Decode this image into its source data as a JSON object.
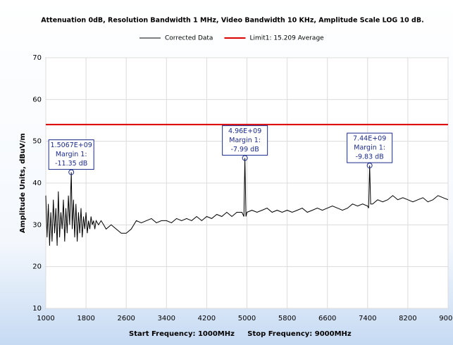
{
  "chart_data": {
    "type": "line",
    "title": "Attenuation 0dB, Resolution Bandwidth 1 MHz, Video Bandwidth 10 KHz, Amplitude Scale LOG 10 dB.",
    "ylabel": "Amplitude Units, dBuV/m",
    "footer": [
      "Start Frequency: 1000MHz",
      "Stop Frequency: 9000MHz"
    ],
    "xlim": [
      1000,
      9000
    ],
    "xticks": [
      1000,
      1800,
      2600,
      3400,
      4200,
      5000,
      5800,
      6600,
      7400,
      8200,
      9000
    ],
    "ylim": [
      10,
      70
    ],
    "yticks": [
      10,
      20,
      30,
      40,
      50,
      60,
      70
    ],
    "grid": true,
    "legend": "top",
    "series": [
      {
        "name": "Corrected Data",
        "color": "#000000",
        "x": [
          1000,
          1025,
          1050,
          1075,
          1100,
          1125,
          1150,
          1175,
          1200,
          1225,
          1250,
          1275,
          1300,
          1325,
          1350,
          1375,
          1400,
          1425,
          1450,
          1475,
          1507,
          1525,
          1550,
          1575,
          1600,
          1625,
          1650,
          1675,
          1700,
          1725,
          1750,
          1775,
          1800,
          1825,
          1850,
          1875,
          1900,
          1925,
          1950,
          1975,
          2000,
          2050,
          2100,
          2150,
          2200,
          2300,
          2400,
          2500,
          2600,
          2700,
          2800,
          2900,
          3000,
          3100,
          3200,
          3300,
          3400,
          3500,
          3600,
          3700,
          3800,
          3900,
          4000,
          4100,
          4200,
          4300,
          4400,
          4500,
          4600,
          4700,
          4800,
          4900,
          4940,
          4960,
          4980,
          5000,
          5100,
          5200,
          5300,
          5400,
          5500,
          5600,
          5700,
          5800,
          5900,
          6000,
          6100,
          6200,
          6300,
          6400,
          6500,
          6600,
          6700,
          6800,
          6900,
          7000,
          7100,
          7200,
          7300,
          7400,
          7420,
          7440,
          7460,
          7500,
          7600,
          7700,
          7800,
          7900,
          8000,
          8100,
          8200,
          8300,
          8400,
          8500,
          8600,
          8700,
          8800,
          8900,
          9000
        ],
        "values": [
          37,
          27,
          35,
          25,
          33,
          26,
          36,
          28,
          34,
          25,
          38,
          27,
          33,
          29,
          36,
          26,
          34,
          28,
          37,
          30,
          42.6,
          29,
          36,
          27,
          35,
          26,
          33,
          28,
          34,
          27,
          32,
          29,
          33,
          28,
          31,
          29,
          32,
          30,
          31,
          29,
          31,
          30,
          31,
          30,
          29,
          30,
          29,
          28,
          28,
          29,
          31,
          30.5,
          31,
          31.5,
          30.5,
          31,
          31,
          30.5,
          31.5,
          31,
          31.5,
          31,
          32,
          31,
          32,
          31.5,
          32.5,
          32,
          33,
          32,
          33,
          33,
          32,
          46,
          32,
          33,
          33.5,
          33,
          33.5,
          34,
          33,
          33.5,
          33,
          33.5,
          33,
          33.5,
          34,
          33,
          33.5,
          34,
          33.5,
          34,
          34.5,
          34,
          33.5,
          34,
          35,
          34.5,
          35,
          34.5,
          34,
          44.2,
          35,
          35,
          36,
          35.5,
          36,
          37,
          36,
          36.5,
          36,
          35.5,
          36,
          36.5,
          35.5,
          36,
          37,
          36.5,
          36
        ]
      },
      {
        "name": "Limit1: 15.209 Average",
        "color": "#dd0000",
        "x": [
          1000,
          9000
        ],
        "values": [
          54,
          54
        ]
      }
    ],
    "annotations": [
      {
        "x": 1507,
        "y": 42.6,
        "lines": [
          "1.5067E+09",
          "Margin 1:",
          "-11.35 dB"
        ]
      },
      {
        "x": 4960,
        "y": 46,
        "lines": [
          "4.96E+09",
          "Margin 1:",
          "-7.99 dB"
        ]
      },
      {
        "x": 7440,
        "y": 44.2,
        "lines": [
          "7.44E+09",
          "Margin 1:",
          "-9.83 dB"
        ]
      }
    ]
  }
}
